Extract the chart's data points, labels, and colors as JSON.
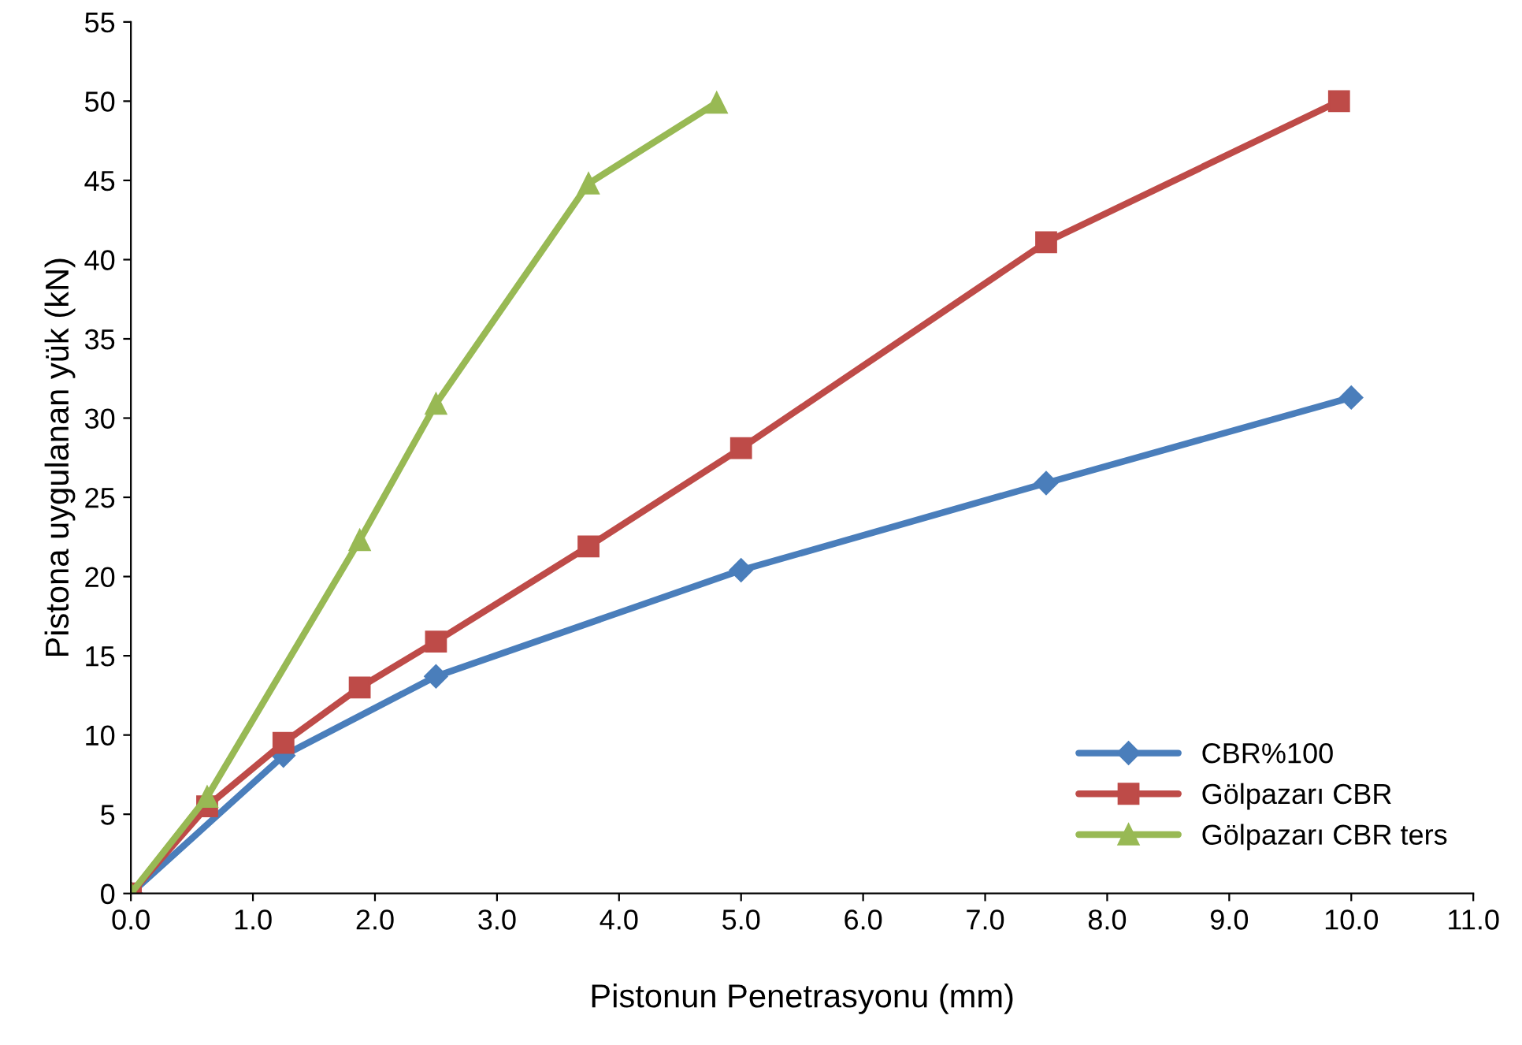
{
  "chart_data": {
    "type": "line",
    "xlabel": "Pistonun Penetrasyonu (mm)",
    "ylabel": "Pistona uygulanan yük (kN)",
    "series": [
      {
        "name": "CBR%100",
        "color": "#4a7ebb",
        "marker": "diamond",
        "x": [
          0,
          1.25,
          2.5,
          5.0,
          7.5,
          10.0
        ],
        "values": [
          0,
          8.7,
          13.7,
          20.4,
          25.9,
          31.3
        ]
      },
      {
        "name": "Gölpazarı CBR",
        "color": "#be4b48",
        "marker": "square",
        "x": [
          0,
          0.625,
          1.25,
          1.875,
          2.5,
          3.75,
          5.0,
          7.5,
          9.9
        ],
        "values": [
          0,
          5.5,
          9.5,
          13.0,
          15.9,
          21.9,
          28.1,
          41.1,
          50.0
        ]
      },
      {
        "name": "Gölpazarı CBR ters",
        "color": "#98b954",
        "marker": "triangle",
        "x": [
          0,
          0.625,
          1.875,
          2.5,
          3.75,
          4.8
        ],
        "values": [
          0,
          6.1,
          22.3,
          30.9,
          44.8,
          49.9
        ]
      }
    ],
    "xlim": [
      0,
      11
    ],
    "xticks": [
      {
        "value": 0,
        "label": "0.0"
      },
      {
        "value": 1,
        "label": "1.0"
      },
      {
        "value": 2,
        "label": "2.0"
      },
      {
        "value": 3,
        "label": "3.0"
      },
      {
        "value": 4,
        "label": "4.0"
      },
      {
        "value": 5,
        "label": "5.0"
      },
      {
        "value": 6,
        "label": "6.0"
      },
      {
        "value": 7,
        "label": "7.0"
      },
      {
        "value": 8,
        "label": "8.0"
      },
      {
        "value": 9,
        "label": "9.0"
      },
      {
        "value": 10,
        "label": "10.0"
      },
      {
        "value": 11,
        "label": "11.0"
      }
    ],
    "ylim": [
      0,
      55
    ],
    "yticks": [
      0,
      5,
      10,
      15,
      20,
      25,
      30,
      35,
      40,
      45,
      50,
      55
    ],
    "grid": false,
    "legend": "bottom right",
    "line_style": "solid"
  }
}
